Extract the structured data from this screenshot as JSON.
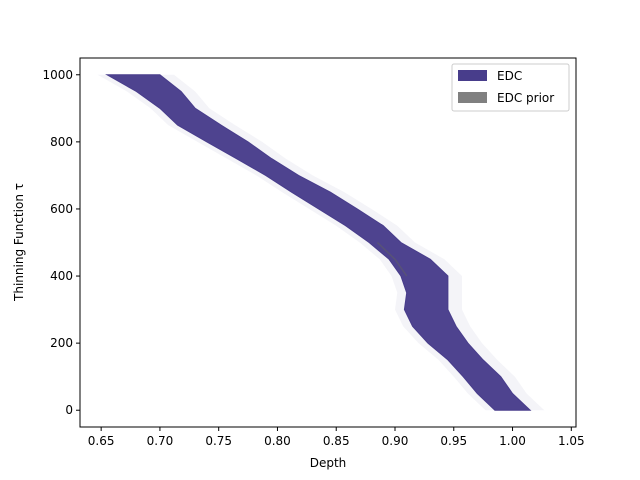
{
  "chart_data": {
    "type": "area",
    "title": "",
    "xlabel": "Depth",
    "ylabel": "Thinning Function τ",
    "xlim": [
      0.632,
      1.054
    ],
    "ylim": [
      -50,
      1050
    ],
    "xticks": [
      "0.65",
      "0.70",
      "0.75",
      "0.80",
      "0.85",
      "0.90",
      "0.95",
      "1.00",
      "1.05"
    ],
    "yticks": [
      "0",
      "200",
      "400",
      "600",
      "800",
      "1000"
    ],
    "grid": false,
    "legend_position": "top-right",
    "series": [
      {
        "name": "EDC",
        "color": "#483d8b",
        "band": [
          {
            "y": 1000,
            "lo": 0.655,
            "hi": 0.7
          },
          {
            "y": 950,
            "lo": 0.68,
            "hi": 0.718
          },
          {
            "y": 900,
            "lo": 0.7,
            "hi": 0.73
          },
          {
            "y": 850,
            "lo": 0.715,
            "hi": 0.752
          },
          {
            "y": 800,
            "lo": 0.74,
            "hi": 0.775
          },
          {
            "y": 750,
            "lo": 0.765,
            "hi": 0.795
          },
          {
            "y": 700,
            "lo": 0.79,
            "hi": 0.818
          },
          {
            "y": 650,
            "lo": 0.812,
            "hi": 0.845
          },
          {
            "y": 600,
            "lo": 0.835,
            "hi": 0.868
          },
          {
            "y": 550,
            "lo": 0.858,
            "hi": 0.89
          },
          {
            "y": 500,
            "lo": 0.878,
            "hi": 0.905
          },
          {
            "y": 450,
            "lo": 0.895,
            "hi": 0.93
          },
          {
            "y": 400,
            "lo": 0.905,
            "hi": 0.945
          },
          {
            "y": 350,
            "lo": 0.91,
            "hi": 0.945
          },
          {
            "y": 300,
            "lo": 0.908,
            "hi": 0.945
          },
          {
            "y": 250,
            "lo": 0.915,
            "hi": 0.952
          },
          {
            "y": 200,
            "lo": 0.928,
            "hi": 0.962
          },
          {
            "y": 150,
            "lo": 0.945,
            "hi": 0.975
          },
          {
            "y": 100,
            "lo": 0.958,
            "hi": 0.99
          },
          {
            "y": 50,
            "lo": 0.97,
            "hi": 1.0
          },
          {
            "y": 0,
            "lo": 0.985,
            "hi": 1.015
          }
        ]
      },
      {
        "name": "EDC prior",
        "color": "#808080",
        "points": [
          {
            "y": 500,
            "x": 0.885
          },
          {
            "y": 450,
            "x": 0.9
          },
          {
            "y": 400,
            "x": 0.91
          }
        ]
      }
    ]
  }
}
